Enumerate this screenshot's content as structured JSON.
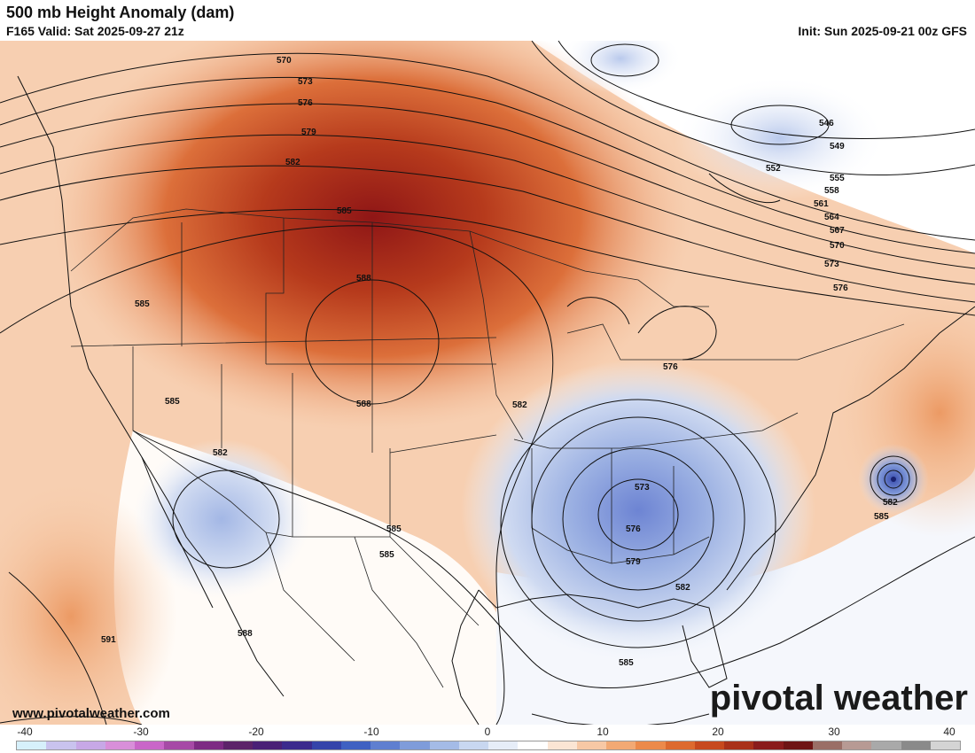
{
  "header": {
    "title": "500 mb Height Anomaly (dam)",
    "valid": "F165 Valid: Sat 2025-09-27 21z",
    "init": "Init: Sun 2025-09-21 00z GFS"
  },
  "footer": {
    "site": "www.pivotalweather.com",
    "logo": "pivotal weather"
  },
  "colorbar": {
    "ticks": [
      "-40",
      "-30",
      "-20",
      "-10",
      "0",
      "10",
      "20",
      "30",
      "40"
    ],
    "colors": [
      "#d6f0fb",
      "#c9c3ee",
      "#c7a8e6",
      "#d88fd9",
      "#c966c8",
      "#a64aa6",
      "#7d2b83",
      "#5c2369",
      "#4a2076",
      "#3b2a8d",
      "#3544aa",
      "#3f61c2",
      "#5f7fd0",
      "#7f9cda",
      "#a4bbe6",
      "#c8d7f0",
      "#e6edf8",
      "#ffffff",
      "#fbe5d4",
      "#f7c8a5",
      "#f2a974",
      "#ec8a4b",
      "#dd6a2f",
      "#c7491e",
      "#a9311a",
      "#8a1c1c",
      "#6e1414",
      "#9a6e66",
      "#b79a94",
      "#a9a9a9",
      "#8a8a8a",
      "#d4d4d4"
    ]
  },
  "contour_labels": [
    "570",
    "573",
    "576",
    "579",
    "582",
    "585",
    "588",
    "546",
    "549",
    "552",
    "555",
    "558",
    "561",
    "564",
    "567",
    "570",
    "573",
    "576",
    "585",
    "582",
    "585",
    "588",
    "576",
    "573",
    "576",
    "579",
    "582",
    "582",
    "585",
    "585",
    "585",
    "591",
    "588",
    "585",
    "582"
  ]
}
